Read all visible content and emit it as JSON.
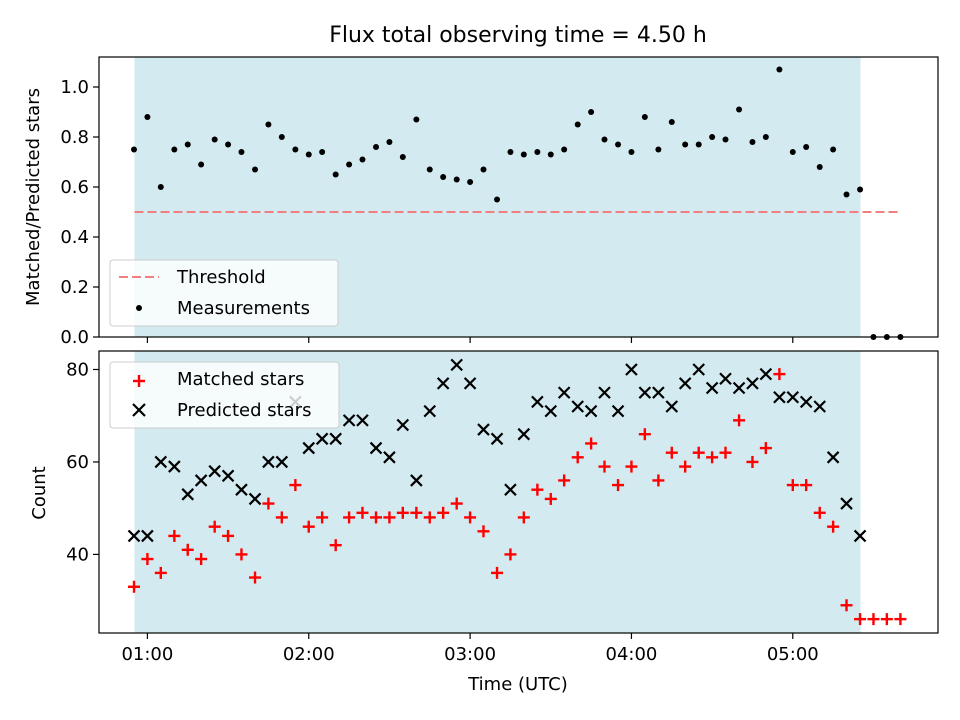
{
  "chart_data": [
    {
      "type": "scatter",
      "title": "Flux total observing time = 4.50 h",
      "xlabel": "",
      "ylabel": "Matched/Predicted stars",
      "ylim": [
        0.0,
        1.12
      ],
      "xlim": [
        0.7,
        5.9
      ],
      "x_unit": "hours UTC",
      "yticks": [
        0.0,
        0.2,
        0.4,
        0.6,
        0.8,
        1.0
      ],
      "ytick_labels": [
        "0.0",
        "0.2",
        "0.4",
        "0.6",
        "0.8",
        "1.0"
      ],
      "shaded_span": {
        "start": 0.92,
        "end": 5.42,
        "color": "#d3eaf0"
      },
      "threshold": {
        "name": "Threshold",
        "value": 0.5,
        "x_start": 0.92,
        "x_end": 5.65,
        "color": "#f08080"
      },
      "legend": {
        "placement": "lower-left",
        "entries": [
          "Threshold",
          "Measurements"
        ]
      },
      "series": [
        {
          "name": "Measurements",
          "color": "#000000",
          "marker": "dot",
          "x": [
            0.917,
            1.0,
            1.083,
            1.167,
            1.25,
            1.333,
            1.417,
            1.5,
            1.583,
            1.667,
            1.75,
            1.833,
            1.917,
            2.0,
            2.083,
            2.167,
            2.25,
            2.333,
            2.417,
            2.5,
            2.583,
            2.667,
            2.75,
            2.833,
            2.917,
            3.0,
            3.083,
            3.167,
            3.25,
            3.333,
            3.417,
            3.5,
            3.583,
            3.667,
            3.75,
            3.833,
            3.917,
            4.0,
            4.083,
            4.167,
            4.25,
            4.333,
            4.417,
            4.5,
            4.583,
            4.667,
            4.75,
            4.833,
            4.917,
            5.0,
            5.083,
            5.167,
            5.25,
            5.333,
            5.417,
            5.5,
            5.583,
            5.667
          ],
          "y": [
            0.75,
            0.88,
            0.6,
            0.75,
            0.77,
            0.69,
            0.79,
            0.77,
            0.74,
            0.67,
            0.85,
            0.8,
            0.75,
            0.73,
            0.74,
            0.65,
            0.69,
            0.71,
            0.76,
            0.78,
            0.72,
            0.87,
            0.67,
            0.64,
            0.63,
            0.62,
            0.67,
            0.55,
            0.74,
            0.73,
            0.74,
            0.73,
            0.75,
            0.85,
            0.9,
            0.79,
            0.77,
            0.74,
            0.88,
            0.75,
            0.86,
            0.77,
            0.77,
            0.8,
            0.79,
            0.91,
            0.78,
            0.8,
            1.07,
            0.74,
            0.76,
            0.68,
            0.75,
            0.57,
            0.59,
            0.0,
            0.0,
            0.0
          ]
        }
      ]
    },
    {
      "type": "scatter",
      "title": "",
      "xlabel": "Time (UTC)",
      "ylabel": "Count",
      "ylim": [
        23,
        84
      ],
      "xlim": [
        0.7,
        5.9
      ],
      "x_unit": "hours UTC",
      "yticks": [
        40,
        60,
        80
      ],
      "ytick_labels": [
        "40",
        "60",
        "80"
      ],
      "xticks": [
        1,
        2,
        3,
        4,
        5
      ],
      "xtick_labels": [
        "01:00",
        "02:00",
        "03:00",
        "04:00",
        "05:00"
      ],
      "shaded_span": {
        "start": 0.92,
        "end": 5.42,
        "color": "#d3eaf0"
      },
      "legend": {
        "placement": "upper-left",
        "entries": [
          "Matched stars",
          "Predicted stars"
        ]
      },
      "series": [
        {
          "name": "Matched stars",
          "color": "#ff0000",
          "marker": "plus",
          "x": [
            0.917,
            1.0,
            1.083,
            1.167,
            1.25,
            1.333,
            1.417,
            1.5,
            1.583,
            1.667,
            1.75,
            1.833,
            1.917,
            2.0,
            2.083,
            2.167,
            2.25,
            2.333,
            2.417,
            2.5,
            2.583,
            2.667,
            2.75,
            2.833,
            2.917,
            3.0,
            3.083,
            3.167,
            3.25,
            3.333,
            3.417,
            3.5,
            3.583,
            3.667,
            3.75,
            3.833,
            3.917,
            4.0,
            4.083,
            4.167,
            4.25,
            4.333,
            4.417,
            4.5,
            4.583,
            4.667,
            4.75,
            4.833,
            4.917,
            5.0,
            5.083,
            5.167,
            5.25,
            5.333,
            5.417,
            5.5,
            5.583,
            5.667
          ],
          "y": [
            33,
            39,
            36,
            44,
            41,
            39,
            46,
            44,
            40,
            35,
            51,
            48,
            55,
            46,
            48,
            42,
            48,
            49,
            48,
            48,
            49,
            49,
            48,
            49,
            51,
            48,
            45,
            36,
            40,
            48,
            54,
            52,
            56,
            61,
            64,
            59,
            55,
            59,
            66,
            56,
            62,
            59,
            62,
            61,
            62,
            69,
            60,
            63,
            79,
            55,
            55,
            49,
            46,
            29,
            26,
            26,
            26,
            26
          ]
        },
        {
          "name": "Predicted stars",
          "color": "#000000",
          "marker": "x",
          "x": [
            0.917,
            1.0,
            1.083,
            1.167,
            1.25,
            1.333,
            1.417,
            1.5,
            1.583,
            1.667,
            1.75,
            1.833,
            1.917,
            2.0,
            2.083,
            2.167,
            2.25,
            2.333,
            2.417,
            2.5,
            2.583,
            2.667,
            2.75,
            2.833,
            2.917,
            3.0,
            3.083,
            3.167,
            3.25,
            3.333,
            3.417,
            3.5,
            3.583,
            3.667,
            3.75,
            3.833,
            3.917,
            4.0,
            4.083,
            4.167,
            4.25,
            4.333,
            4.417,
            4.5,
            4.583,
            4.667,
            4.75,
            4.833,
            4.917,
            5.0,
            5.083,
            5.167,
            5.25,
            5.333,
            5.417
          ],
          "y": [
            44,
            44,
            60,
            59,
            53,
            56,
            58,
            57,
            54,
            52,
            60,
            60,
            73,
            63,
            65,
            65,
            69,
            69,
            63,
            61,
            68,
            56,
            71,
            77,
            81,
            77,
            67,
            65,
            54,
            66,
            73,
            71,
            75,
            72,
            71,
            75,
            71,
            80,
            75,
            75,
            72,
            77,
            80,
            76,
            78,
            76,
            77,
            79,
            74,
            74,
            73,
            72,
            61,
            51,
            44
          ]
        }
      ]
    }
  ]
}
